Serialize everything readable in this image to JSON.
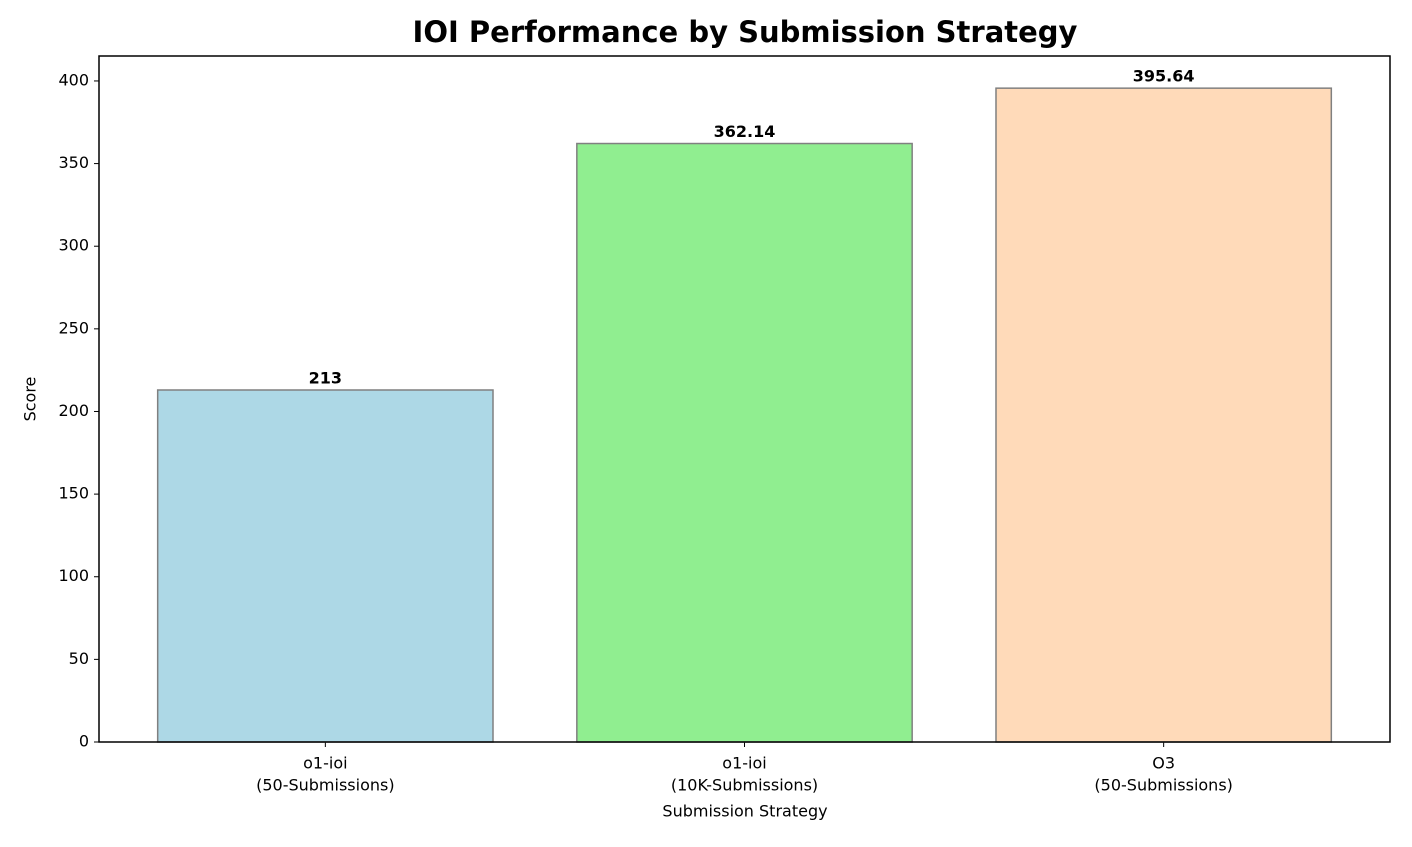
{
  "chart_data": {
    "type": "bar",
    "title": "IOI Performance by Submission Strategy",
    "x_label": "Submission Strategy",
    "y_label": "Score",
    "categories": [
      [
        "o1-ioi",
        "(50-Submissions)"
      ],
      [
        "o1-ioi",
        "(10K-Submissions)"
      ],
      [
        "O3",
        "(50-Submissions)"
      ]
    ],
    "values": [
      213,
      362.14,
      395.64
    ],
    "colors": [
      "#add8e6",
      "#90ee90",
      "#ffdab9"
    ],
    "edge_color": "#808080",
    "ylim": [
      0,
      415.1
    ],
    "yticks": [
      0,
      50,
      100,
      150,
      200,
      250,
      300,
      350,
      400
    ],
    "grid": false
  }
}
